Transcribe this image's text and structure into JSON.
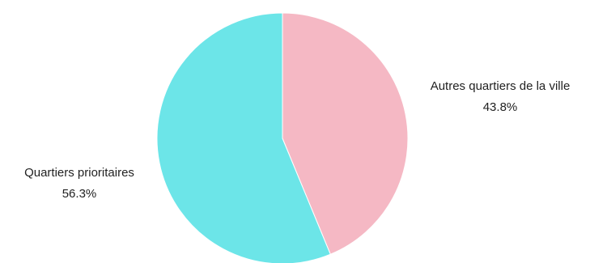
{
  "chart_data": {
    "type": "pie",
    "title": "",
    "slices": [
      {
        "label": "Autres quartiers de la ville",
        "value": 43.8,
        "value_label": "43.8%",
        "color": "#F5B8C4"
      },
      {
        "label": "Quartiers prioritaires",
        "value": 56.3,
        "value_label": "56.3%",
        "color": "#6CE5E8"
      }
    ],
    "start_angle": "12 o'clock",
    "direction": "clockwise",
    "legend": "none"
  }
}
